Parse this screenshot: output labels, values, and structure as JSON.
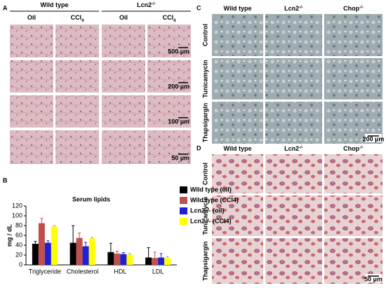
{
  "panel_a": {
    "label": "A",
    "groups": [
      {
        "name": "Wild type"
      },
      {
        "name": "Lcn2",
        "sup": "-/-"
      }
    ],
    "columns": [
      {
        "name": "Oil"
      },
      {
        "name": "CCl",
        "sub": "4"
      },
      {
        "name": "Oil"
      },
      {
        "name": "CCl",
        "sub": "4"
      }
    ],
    "scale_bars": [
      "500 µm",
      "200 µm",
      "100 µm",
      "50 µm"
    ]
  },
  "panel_c": {
    "label": "C",
    "columns": [
      {
        "name": "Wild type"
      },
      {
        "name": "Lcn2",
        "sup": "-/-"
      },
      {
        "name": "Chop",
        "sup": "-/-"
      }
    ],
    "rows": [
      "Control",
      "Tunicamycin",
      "Thapsigargin"
    ],
    "scale_bar": "200 µm"
  },
  "panel_d": {
    "label": "D",
    "columns": [
      {
        "name": "Wild type"
      },
      {
        "name": "Lcn2",
        "sup": "-/-"
      },
      {
        "name": "Chop",
        "sup": "-/-"
      }
    ],
    "rows": [
      "Control",
      "Tunicamycin",
      "Thapsigargin"
    ],
    "scale_bar": "50 µm"
  },
  "chart_data": {
    "label": "B",
    "type": "bar",
    "title": "Serum lipids",
    "y_label": "mg / dL",
    "categories": [
      "Triglyceride",
      "Cholesterol",
      "HDL",
      "LDL"
    ],
    "series": [
      {
        "name": "Wild type (oil)",
        "color": "#000000",
        "values": [
          43,
          45,
          26,
          15
        ],
        "errors": [
          5,
          35,
          18,
          20
        ]
      },
      {
        "name": "Wild type (CCl4)",
        "color": "#c0504d",
        "values": [
          85,
          55,
          23,
          14
        ],
        "errors": [
          10,
          10,
          5,
          12
        ]
      },
      {
        "name": "Lcn2-/- (oil)",
        "color": "#1f1fd6",
        "values": [
          45,
          38,
          22,
          15
        ],
        "errors": [
          4,
          8,
          3,
          8
        ]
      },
      {
        "name": "Lcn2-/- (CCl4)",
        "color": "#ffff00",
        "values": [
          78,
          54,
          21,
          14
        ],
        "errors": [
          2,
          2,
          2,
          3
        ]
      }
    ],
    "ylim": [
      0,
      120
    ],
    "yticks": [
      0,
      20,
      40,
      60,
      80,
      100,
      120
    ]
  }
}
